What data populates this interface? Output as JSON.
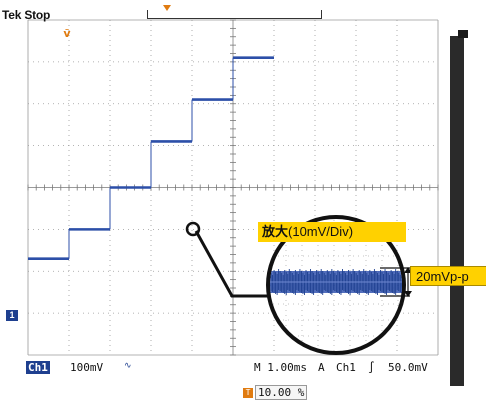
{
  "header": {
    "brand": "Tek Stop"
  },
  "markers": {
    "trigger_position_icon": "trigger-arrow-icon",
    "channel_marker": "1",
    "accent": "#e07b10",
    "channel_color": "#1e3f8f"
  },
  "status": {
    "channel": "Ch1",
    "volts_per_div": "100mV",
    "bandwidth_icon": "∿",
    "timebase": "M 1.00ms",
    "trigger_source_icon": "A",
    "trigger_channel": "Ch1",
    "trigger_slope": "∫",
    "trigger_level": "50.0mV"
  },
  "trigger_readout": {
    "icon": "T",
    "value": "10.00 %"
  },
  "annotation": {
    "zoom_label_main": "放大",
    "zoom_label_paren": "(10mV/Div)",
    "amplitude_label": "20mVp-p",
    "label_color": "#ffd100"
  },
  "waveform": {
    "levels": [
      -1.7,
      -1.0,
      0.0,
      1.1,
      2.1,
      3.1
    ],
    "step_edges": [
      1.0,
      2.0,
      3.0,
      4.0,
      5.0,
      6.0
    ],
    "display": {
      "x_divisions": 10,
      "y_divisions": 8
    }
  }
}
